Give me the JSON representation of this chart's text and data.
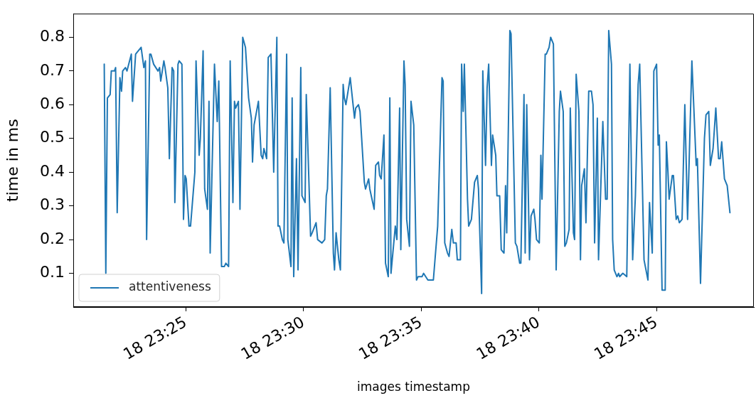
{
  "chart_data": {
    "type": "line",
    "xlabel": "images timestamp",
    "ylabel": "time in ms",
    "legend": "bottom left",
    "grid": false,
    "marker": "none",
    "line_style": "solid",
    "xlim": [
      "--01-18T23:20:13",
      "--01-18T23:49:08"
    ],
    "ylim": [
      0,
      0.87
    ],
    "xticks": [
      {
        "value": "--01-18T23:25",
        "label": "18 23:25"
      },
      {
        "value": "--01-18T23:30",
        "label": "18 23:30"
      },
      {
        "value": "--01-18T23:35",
        "label": "18 23:35"
      },
      {
        "value": "--01-18T23:40",
        "label": "18 23:40"
      },
      {
        "value": "--01-18T23:45",
        "label": "18 23:45"
      }
    ],
    "yticks": [
      0.1,
      0.2,
      0.3,
      0.4,
      0.5,
      0.6,
      0.7,
      0.8
    ],
    "series": [
      {
        "name": "attentiveness",
        "color": "#1f77b4",
        "x": [
          "--01-18T23:21:32",
          "--01-18T23:21:36",
          "--01-18T23:21:40",
          "--01-18T23:21:47",
          "--01-18T23:21:50",
          "--01-18T23:21:58",
          "--01-18T23:22:01",
          "--01-18T23:22:05",
          "--01-18T23:22:12",
          "--01-18T23:22:16",
          "--01-18T23:22:19",
          "--01-18T23:22:26",
          "--01-18T23:22:30",
          "--01-18T23:22:41",
          "--01-18T23:22:44",
          "--01-18T23:22:52",
          "--01-18T23:22:59",
          "--01-18T23:23:06",
          "--01-18T23:23:13",
          "--01-18T23:23:17",
          "--01-18T23:23:20",
          "--01-18T23:23:28",
          "--01-18T23:23:31",
          "--01-18T23:23:38",
          "--01-18T23:23:49",
          "--01-18T23:23:53",
          "--01-18T23:23:56",
          "--01-18T23:24:04",
          "--01-18T23:24:07",
          "--01-18T23:24:14",
          "--01-18T23:24:18",
          "--01-18T23:24:25",
          "--01-18T23:24:29",
          "--01-18T23:24:32",
          "--01-18T23:24:40",
          "--01-18T23:24:43",
          "--01-18T23:24:50",
          "--01-18T23:24:54",
          "--01-18T23:24:58",
          "--01-18T23:25:01",
          "--01-18T23:25:08",
          "--01-18T23:25:12",
          "--01-18T23:25:23",
          "--01-18T23:25:26",
          "--01-18T23:25:34",
          "--01-18T23:25:37",
          "--01-18T23:25:44",
          "--01-18T23:25:48",
          "--01-18T23:25:55",
          "--01-18T23:25:59",
          "--01-18T23:26:02",
          "--01-18T23:26:13",
          "--01-18T23:26:20",
          "--01-18T23:26:24",
          "--01-18T23:26:31",
          "--01-18T23:26:38",
          "--01-18T23:26:42",
          "--01-18T23:26:49",
          "--01-18T23:26:53",
          "--01-18T23:27:00",
          "--01-18T23:27:04",
          "--01-18T23:27:07",
          "--01-18T23:27:14",
          "--01-18T23:27:18",
          "--01-18T23:27:25",
          "--01-18T23:27:32",
          "--01-18T23:27:40",
          "--01-18T23:27:47",
          "--01-18T23:27:50",
          "--01-18T23:27:54",
          "--01-18T23:28:05",
          "--01-18T23:28:12",
          "--01-18T23:28:16",
          "--01-18T23:28:19",
          "--01-18T23:28:26",
          "--01-18T23:28:30",
          "--01-18T23:28:37",
          "--01-18T23:28:44",
          "--01-18T23:28:52",
          "--01-18T23:28:55",
          "--01-18T23:28:59",
          "--01-18T23:29:06",
          "--01-18T23:29:10",
          "--01-18T23:29:17",
          "--01-18T23:29:20",
          "--01-18T23:29:28",
          "--01-18T23:29:31",
          "--01-18T23:29:35",
          "--01-18T23:29:42",
          "--01-18T23:29:46",
          "--01-18T23:29:53",
          "--01-18T23:29:56",
          "--01-18T23:30:04",
          "--01-18T23:30:07",
          "--01-18T23:30:18",
          "--01-18T23:30:22",
          "--01-18T23:30:32",
          "--01-18T23:30:36",
          "--01-18T23:30:47",
          "--01-18T23:30:54",
          "--01-18T23:30:58",
          "--01-18T23:31:01",
          "--01-18T23:31:08",
          "--01-18T23:31:16",
          "--01-18T23:31:19",
          "--01-18T23:31:23",
          "--01-18T23:31:30",
          "--01-18T23:31:34",
          "--01-18T23:31:41",
          "--01-18T23:31:44",
          "--01-18T23:31:48",
          "--01-18T23:31:59",
          "--01-18T23:32:10",
          "--01-18T23:32:13",
          "--01-18T23:32:20",
          "--01-18T23:32:24",
          "--01-18T23:32:35",
          "--01-18T23:32:38",
          "--01-18T23:32:46",
          "--01-18T23:32:49",
          "--01-18T23:33:00",
          "--01-18T23:33:04",
          "--01-18T23:33:11",
          "--01-18T23:33:14",
          "--01-18T23:33:18",
          "--01-18T23:33:25",
          "--01-18T23:33:29",
          "--01-18T23:33:36",
          "--01-18T23:33:40",
          "--01-18T23:33:43",
          "--01-18T23:33:54",
          "--01-18T23:33:58",
          "--01-18T23:34:05",
          "--01-18T23:34:08",
          "--01-18T23:34:16",
          "--01-18T23:34:19",
          "--01-18T23:34:23",
          "--01-18T23:34:30",
          "--01-18T23:34:34",
          "--01-18T23:34:41",
          "--01-18T23:34:48",
          "--01-18T23:34:52",
          "--01-18T23:35:02",
          "--01-18T23:35:06",
          "--01-18T23:35:17",
          "--01-18T23:35:31",
          "--01-18T23:35:42",
          "--01-18T23:35:53",
          "--01-18T23:35:56",
          "--01-18T23:36:00",
          "--01-18T23:36:07",
          "--01-18T23:36:11",
          "--01-18T23:36:18",
          "--01-18T23:36:22",
          "--01-18T23:36:29",
          "--01-18T23:36:32",
          "--01-18T23:36:40",
          "--01-18T23:36:43",
          "--01-18T23:36:47",
          "--01-18T23:36:50",
          "--01-18T23:36:58",
          "--01-18T23:37:01",
          "--01-18T23:37:08",
          "--01-18T23:37:16",
          "--01-18T23:37:23",
          "--01-18T23:37:26",
          "--01-18T23:37:34",
          "--01-18T23:37:37",
          "--01-18T23:37:44",
          "--01-18T23:37:48",
          "--01-18T23:37:52",
          "--01-18T23:37:59",
          "--01-18T23:38:02",
          "--01-18T23:38:10",
          "--01-18T23:38:13",
          "--01-18T23:38:20",
          "--01-18T23:38:24",
          "--01-18T23:38:31",
          "--01-18T23:38:35",
          "--01-18T23:38:38",
          "--01-18T23:38:46",
          "--01-18T23:38:49",
          "--01-18T23:39:00",
          "--01-18T23:39:04",
          "--01-18T23:39:11",
          "--01-18T23:39:14",
          "--01-18T23:39:22",
          "--01-18T23:39:25",
          "--01-18T23:39:29",
          "--01-18T23:39:36",
          "--01-18T23:39:40",
          "--01-18T23:39:47",
          "--01-18T23:39:50",
          "--01-18T23:39:54",
          "--01-18T23:40:01",
          "--01-18T23:40:05",
          "--01-18T23:40:08",
          "--01-18T23:40:16",
          "--01-18T23:40:19",
          "--01-18T23:40:26",
          "--01-18T23:40:30",
          "--01-18T23:40:37",
          "--01-18T23:40:44",
          "--01-18T23:40:52",
          "--01-18T23:40:55",
          "--01-18T23:41:02",
          "--01-18T23:41:06",
          "--01-18T23:41:10",
          "--01-18T23:41:17",
          "--01-18T23:41:20",
          "--01-18T23:41:28",
          "--01-18T23:41:31",
          "--01-18T23:41:35",
          "--01-18T23:41:42",
          "--01-18T23:41:46",
          "--01-18T23:41:49",
          "--01-18T23:41:56",
          "--01-18T23:42:00",
          "--01-18T23:42:07",
          "--01-18T23:42:14",
          "--01-18T23:42:18",
          "--01-18T23:42:22",
          "--01-18T23:42:29",
          "--01-18T23:42:32",
          "--01-18T23:42:43",
          "--01-18T23:42:50",
          "--01-18T23:42:54",
          "--01-18T23:42:58",
          "--01-18T23:43:05",
          "--01-18T23:43:08",
          "--01-18T23:43:12",
          "--01-18T23:43:19",
          "--01-18T23:43:23",
          "--01-18T23:43:26",
          "--01-18T23:43:34",
          "--01-18T23:43:44",
          "--01-18T23:43:52",
          "--01-18T23:43:59",
          "--01-18T23:44:06",
          "--01-18T23:44:13",
          "--01-18T23:44:17",
          "--01-18T23:44:28",
          "--01-18T23:44:38",
          "--01-18T23:44:42",
          "--01-18T23:44:49",
          "--01-18T23:44:53",
          "--01-18T23:45:00",
          "--01-18T23:45:04",
          "--01-18T23:45:07",
          "--01-18T23:45:14",
          "--01-18T23:45:22",
          "--01-18T23:45:25",
          "--01-18T23:45:29",
          "--01-18T23:45:32",
          "--01-18T23:45:40",
          "--01-18T23:45:43",
          "--01-18T23:45:50",
          "--01-18T23:45:54",
          "--01-18T23:45:58",
          "--01-18T23:46:05",
          "--01-18T23:46:12",
          "--01-18T23:46:19",
          "--01-18T23:46:30",
          "--01-18T23:46:41",
          "--01-18T23:46:44",
          "--01-18T23:46:52",
          "--01-18T23:47:02",
          "--01-18T23:47:06",
          "--01-18T23:47:13",
          "--01-18T23:47:17",
          "--01-18T23:47:24",
          "--01-18T23:47:31",
          "--01-18T23:47:38",
          "--01-18T23:47:42",
          "--01-18T23:47:46",
          "--01-18T23:47:53",
          "--01-18T23:48:00",
          "--01-18T23:48:07"
        ],
        "values": [
          0.72,
          0.1,
          0.62,
          0.63,
          0.7,
          0.7,
          0.71,
          0.28,
          0.68,
          0.64,
          0.7,
          0.71,
          0.7,
          0.75,
          0.61,
          0.75,
          0.76,
          0.77,
          0.71,
          0.73,
          0.2,
          0.75,
          0.75,
          0.72,
          0.7,
          0.71,
          0.67,
          0.73,
          0.71,
          0.65,
          0.44,
          0.71,
          0.7,
          0.31,
          0.72,
          0.73,
          0.72,
          0.26,
          0.39,
          0.38,
          0.24,
          0.24,
          0.4,
          0.73,
          0.45,
          0.5,
          0.76,
          0.35,
          0.29,
          0.61,
          0.16,
          0.72,
          0.55,
          0.67,
          0.12,
          0.12,
          0.13,
          0.12,
          0.73,
          0.31,
          0.61,
          0.59,
          0.61,
          0.29,
          0.8,
          0.77,
          0.62,
          0.56,
          0.43,
          0.54,
          0.61,
          0.45,
          0.44,
          0.47,
          0.44,
          0.74,
          0.75,
          0.4,
          0.8,
          0.24,
          0.24,
          0.2,
          0.19,
          0.75,
          0.2,
          0.12,
          0.62,
          0.09,
          0.44,
          0.11,
          0.71,
          0.33,
          0.31,
          0.63,
          0.21,
          0.22,
          0.25,
          0.2,
          0.19,
          0.2,
          0.33,
          0.35,
          0.65,
          0.16,
          0.11,
          0.22,
          0.14,
          0.11,
          0.66,
          0.62,
          0.6,
          0.68,
          0.56,
          0.59,
          0.6,
          0.58,
          0.37,
          0.35,
          0.38,
          0.35,
          0.29,
          0.42,
          0.43,
          0.39,
          0.38,
          0.51,
          0.13,
          0.09,
          0.62,
          0.1,
          0.24,
          0.2,
          0.59,
          0.17,
          0.73,
          0.66,
          0.26,
          0.18,
          0.61,
          0.54,
          0.08,
          0.09,
          0.09,
          0.1,
          0.08,
          0.08,
          0.24,
          0.68,
          0.67,
          0.19,
          0.16,
          0.15,
          0.23,
          0.19,
          0.19,
          0.14,
          0.14,
          0.72,
          0.58,
          0.72,
          0.32,
          0.24,
          0.26,
          0.37,
          0.39,
          0.35,
          0.04,
          0.7,
          0.42,
          0.65,
          0.72,
          0.42,
          0.51,
          0.45,
          0.33,
          0.33,
          0.17,
          0.16,
          0.36,
          0.22,
          0.82,
          0.81,
          0.19,
          0.18,
          0.13,
          0.13,
          0.63,
          0.16,
          0.6,
          0.14,
          0.27,
          0.29,
          0.26,
          0.2,
          0.19,
          0.45,
          0.32,
          0.75,
          0.75,
          0.77,
          0.8,
          0.78,
          0.11,
          0.58,
          0.64,
          0.58,
          0.18,
          0.19,
          0.23,
          0.59,
          0.22,
          0.2,
          0.69,
          0.58,
          0.14,
          0.36,
          0.41,
          0.25,
          0.64,
          0.64,
          0.6,
          0.19,
          0.56,
          0.14,
          0.55,
          0.32,
          0.32,
          0.82,
          0.72,
          0.2,
          0.11,
          0.09,
          0.1,
          0.09,
          0.1,
          0.09,
          0.72,
          0.14,
          0.33,
          0.66,
          0.72,
          0.14,
          0.08,
          0.31,
          0.16,
          0.7,
          0.72,
          0.48,
          0.51,
          0.05,
          0.05,
          0.49,
          0.4,
          0.32,
          0.39,
          0.39,
          0.26,
          0.27,
          0.25,
          0.26,
          0.6,
          0.26,
          0.73,
          0.42,
          0.44,
          0.07,
          0.5,
          0.57,
          0.58,
          0.42,
          0.47,
          0.59,
          0.44,
          0.44,
          0.49,
          0.38,
          0.36,
          0.28
        ]
      }
    ]
  }
}
